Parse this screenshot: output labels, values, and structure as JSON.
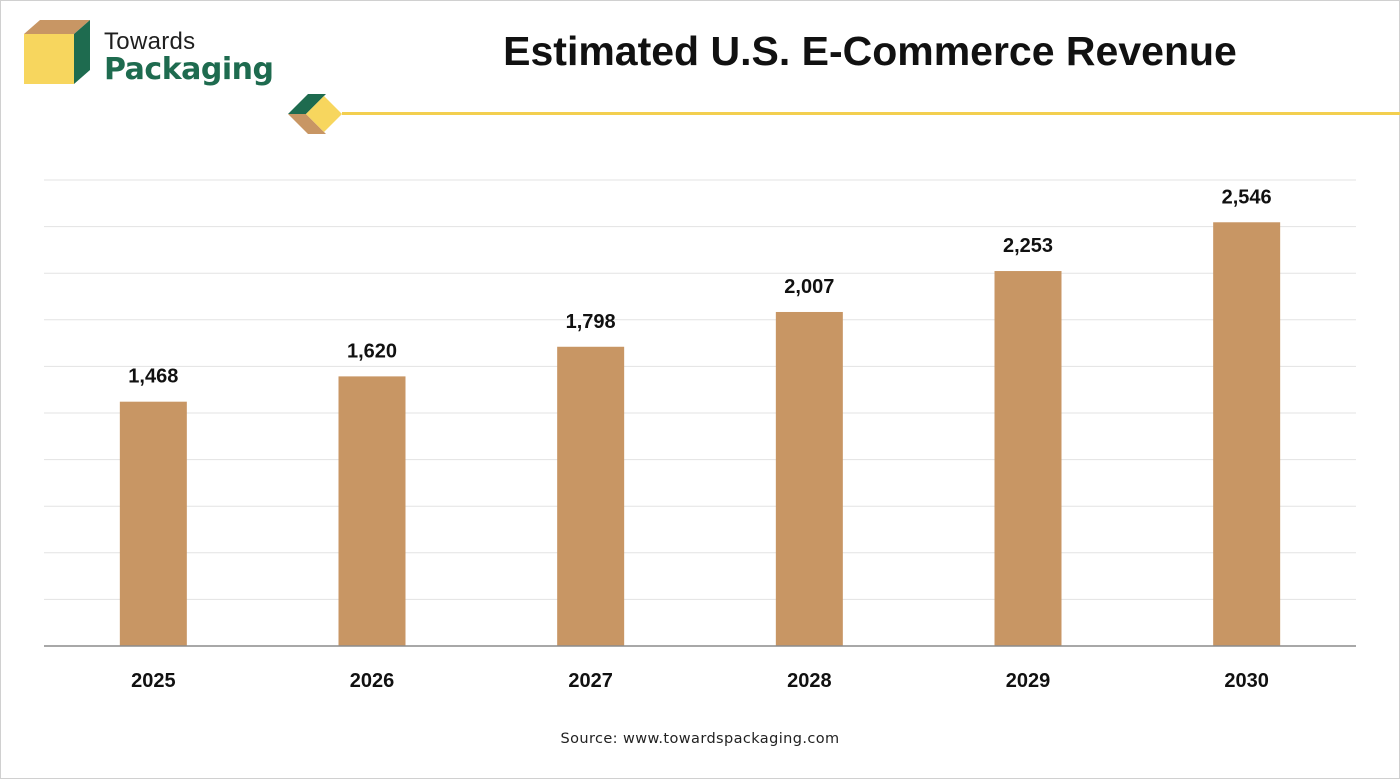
{
  "brand": {
    "name_line1": "Towards",
    "name_line2": "Packaging",
    "colors": {
      "green": "#1e6b4f",
      "tan": "#c89664",
      "yellow": "#f7d65e",
      "rule": "#f3cf4f"
    }
  },
  "title": "Estimated U.S. E-Commerce Revenue",
  "source": "Source: www.towardspackaging.com",
  "chart_data": {
    "type": "bar",
    "categories": [
      "2025",
      "2026",
      "2027",
      "2028",
      "2029",
      "2030"
    ],
    "values": [
      1468,
      1620,
      1798,
      2007,
      2253,
      2546
    ],
    "value_labels": [
      "1,468",
      "1,620",
      "1,798",
      "2,007",
      "2,253",
      "2,546"
    ],
    "title": "Estimated U.S. E-Commerce Revenue",
    "xlabel": "",
    "ylabel": "",
    "ylim": [
      0,
      2800
    ],
    "grid": true,
    "bar_color": "#c89664",
    "legend": "none"
  }
}
